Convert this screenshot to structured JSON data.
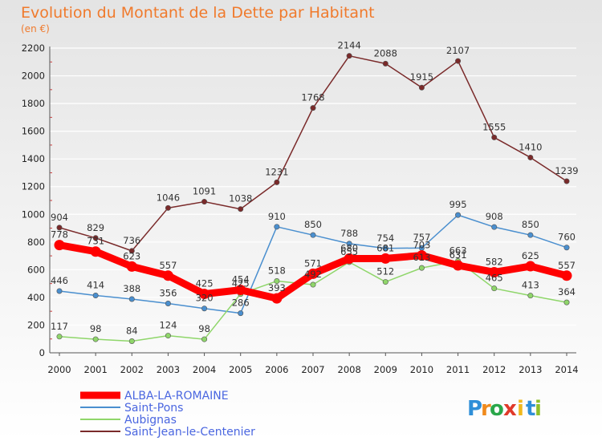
{
  "page": {
    "title": "Evolution du Montant de la Dette par Habitant",
    "subtitle": "(en €)"
  },
  "brand": {
    "letters": [
      "P",
      "r",
      "o",
      "x",
      "i",
      "t",
      "i"
    ],
    "colors": [
      "#2f8fd8",
      "#f08a1c",
      "#2aa74a",
      "#e03a2a",
      "#f0b81c",
      "#2f8fd8",
      "#8fbf2a"
    ]
  },
  "chart_data": {
    "type": "line",
    "x": [
      2000,
      2001,
      2002,
      2003,
      2004,
      2005,
      2006,
      2007,
      2008,
      2009,
      2010,
      2011,
      2012,
      2013,
      2014
    ],
    "ylim": [
      0,
      2200
    ],
    "yticks": [
      0,
      200,
      400,
      600,
      800,
      1000,
      1200,
      1400,
      1600,
      1800,
      2000,
      2200
    ],
    "grid": "horizontal",
    "legend_position": "bottom-left",
    "series": [
      {
        "name": "Saint-Jean-le-Centenier",
        "color": "#7a2a2a",
        "values": [
          904,
          829,
          736,
          1046,
          1091,
          1038,
          1231,
          1768,
          2144,
          2088,
          1915,
          2107,
          1555,
          1410,
          1239
        ]
      },
      {
        "name": "Saint-Pons",
        "color": "#4a8fcf",
        "values": [
          446,
          414,
          388,
          356,
          320,
          286,
          910,
          850,
          788,
          754,
          757,
          995,
          908,
          850,
          760
        ]
      },
      {
        "name": "Aubignas",
        "color": "#8fd66a",
        "values": [
          117,
          98,
          84,
          124,
          98,
          425,
          518,
          492,
          655,
          512,
          613,
          663,
          465,
          413,
          364
        ]
      },
      {
        "name": "ALBA-LA-ROMAINE",
        "color": "#ff0000",
        "values": [
          778,
          731,
          623,
          557,
          425,
          454,
          393,
          571,
          680,
          681,
          703,
          631,
          582,
          625,
          557
        ]
      }
    ],
    "legend_order": [
      "ALBA-LA-ROMAINE",
      "Saint-Pons",
      "Aubignas",
      "Saint-Jean-le-Centenier"
    ]
  }
}
